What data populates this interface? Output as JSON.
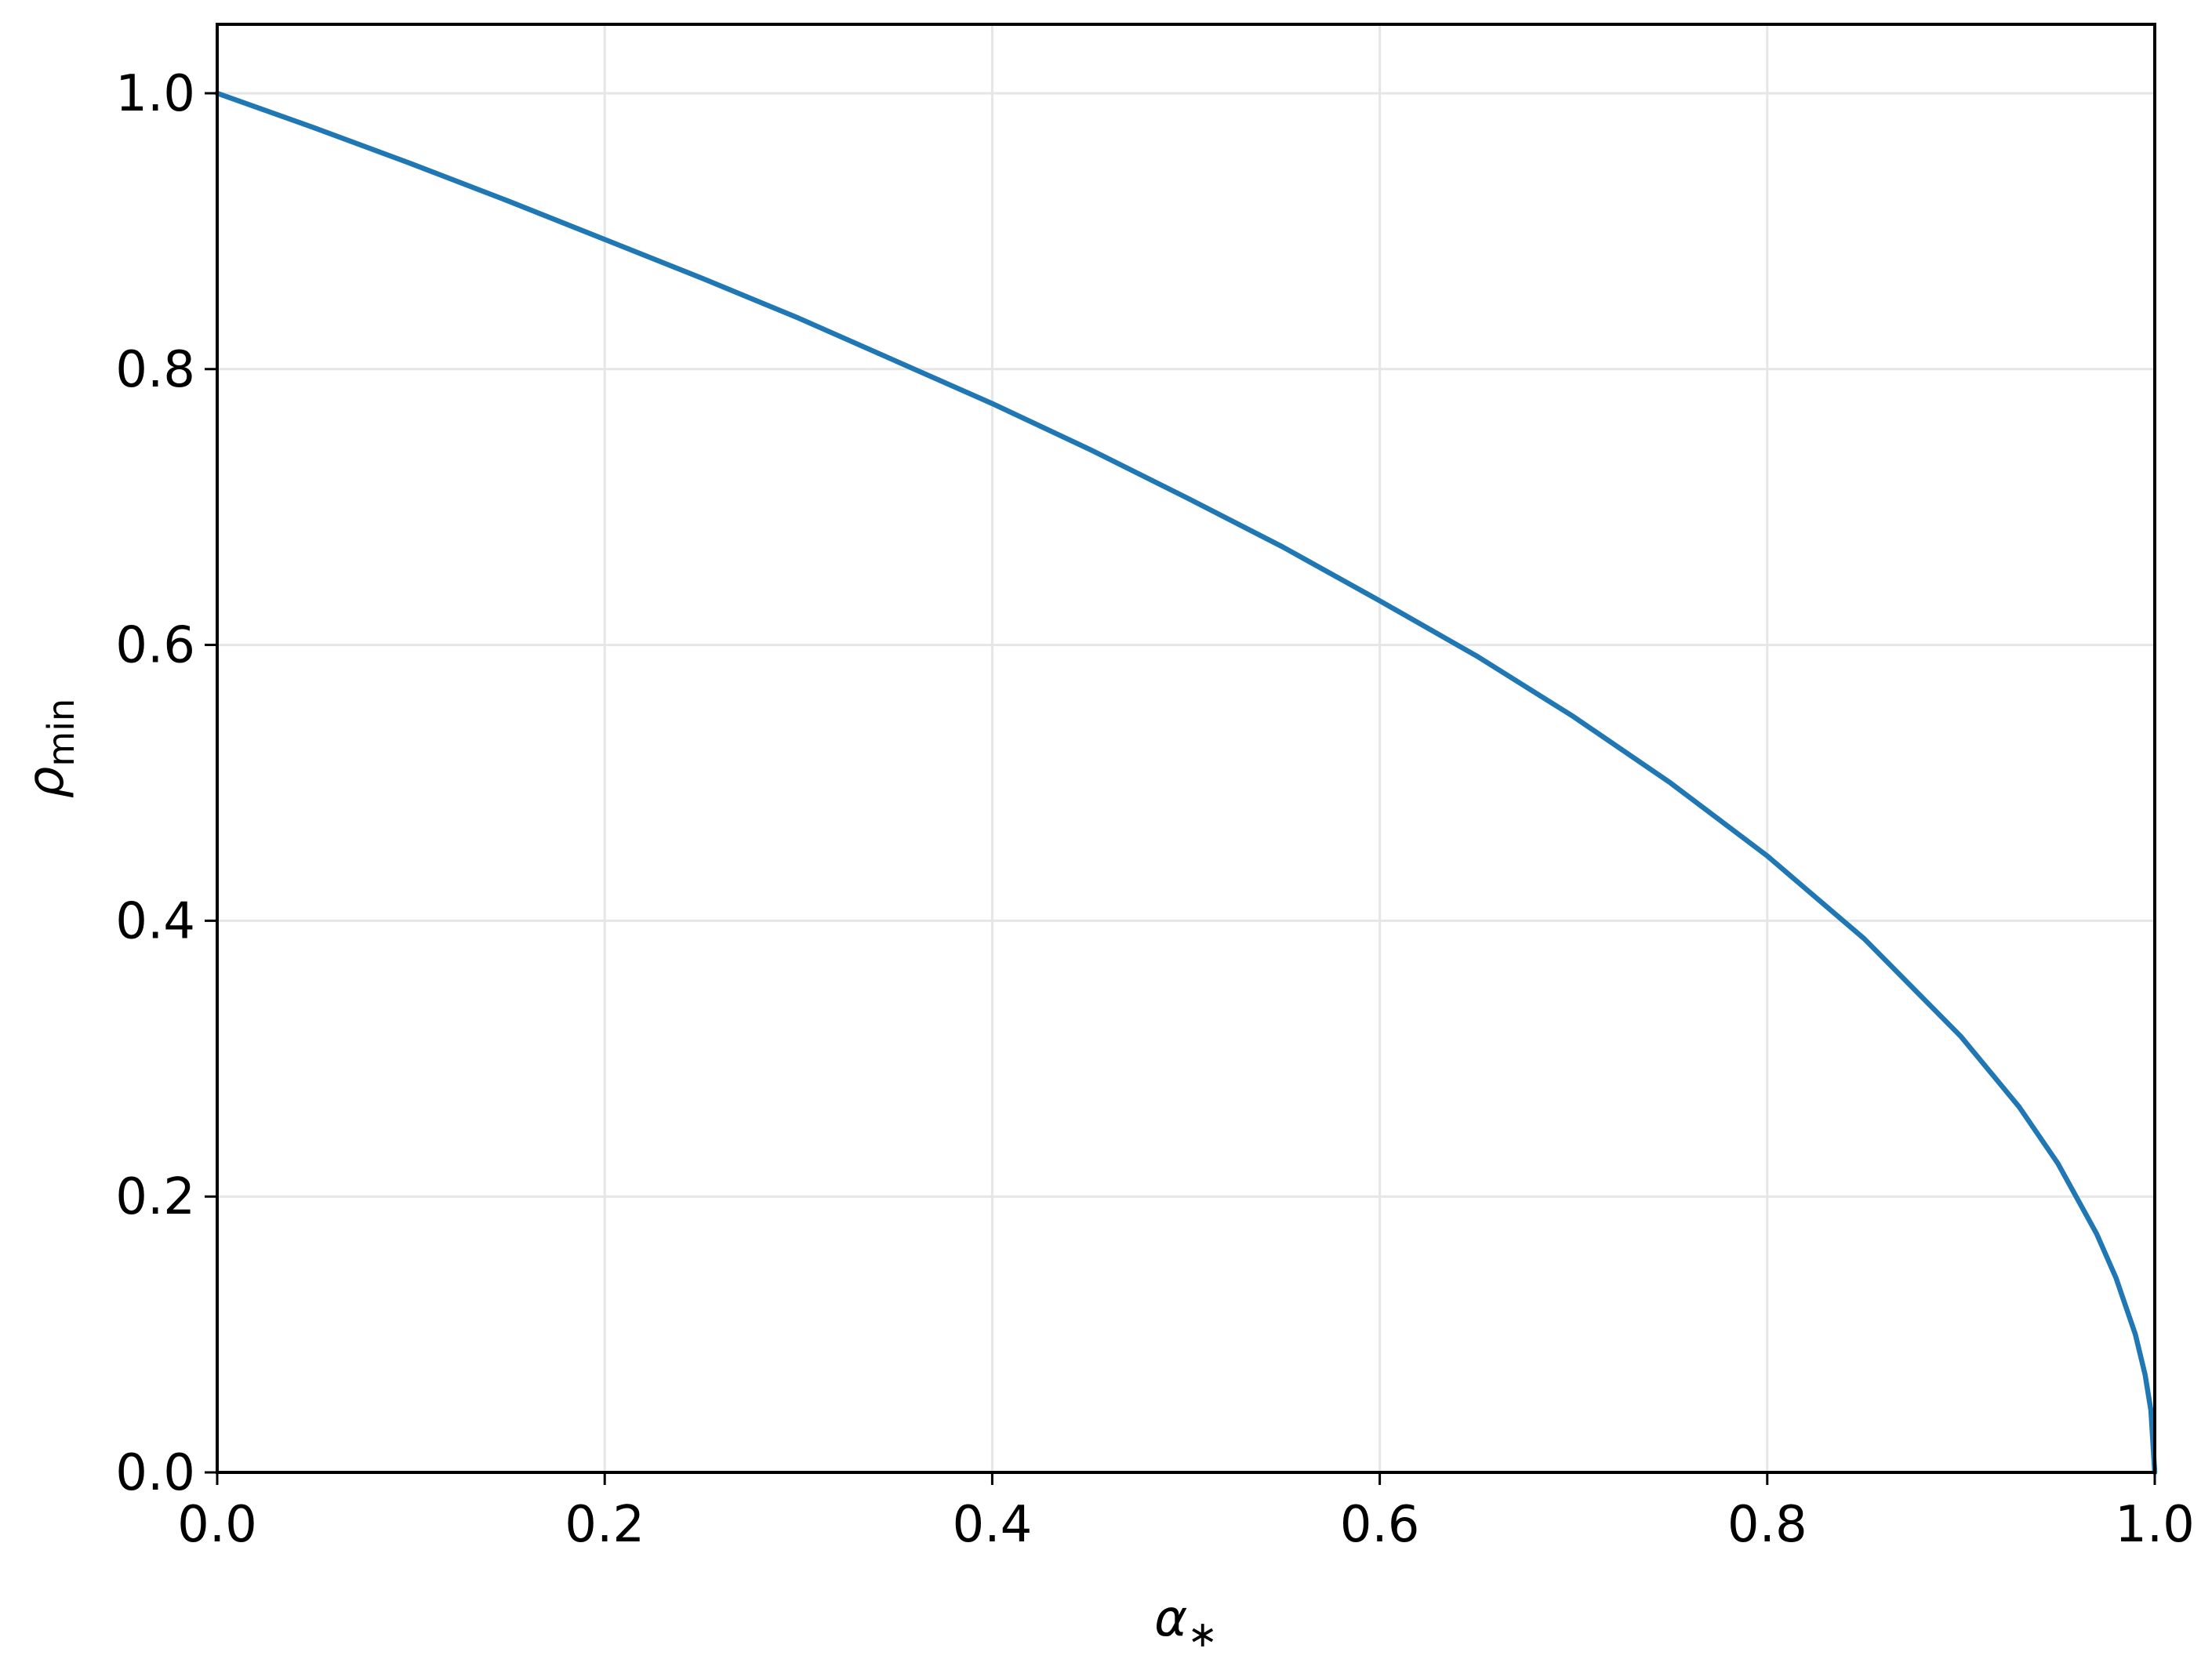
{
  "chart_data": {
    "type": "line",
    "title": "",
    "xlabel": {
      "base": "α",
      "sub": "∗"
    },
    "ylabel": {
      "base": "ρ",
      "sub": "min"
    },
    "xlim": [
      0.0,
      1.0
    ],
    "ylim": [
      0.0,
      1.05
    ],
    "grid": true,
    "x_ticks": [
      "0.0",
      "0.2",
      "0.4",
      "0.6",
      "0.8",
      "1.0"
    ],
    "x_tick_values": [
      0.0,
      0.2,
      0.4,
      0.6,
      0.8,
      1.0
    ],
    "y_ticks": [
      "0.0",
      "0.2",
      "0.4",
      "0.6",
      "0.8",
      "1.0"
    ],
    "y_tick_values": [
      0.0,
      0.2,
      0.4,
      0.6,
      0.8,
      1.0
    ],
    "series": [
      {
        "color": "#1f77b4",
        "x": [
          0.0,
          0.05,
          0.1,
          0.15,
          0.2,
          0.25,
          0.3,
          0.35,
          0.4,
          0.45,
          0.5,
          0.55,
          0.6,
          0.65,
          0.7,
          0.75,
          0.8,
          0.85,
          0.9,
          0.93,
          0.95,
          0.97,
          0.98,
          0.99,
          0.995,
          0.998,
          1.0
        ],
        "y": [
          1.0,
          0.975,
          0.949,
          0.922,
          0.894,
          0.866,
          0.837,
          0.806,
          0.775,
          0.742,
          0.707,
          0.671,
          0.632,
          0.592,
          0.548,
          0.5,
          0.447,
          0.387,
          0.316,
          0.265,
          0.224,
          0.173,
          0.141,
          0.1,
          0.071,
          0.045,
          0.0
        ]
      }
    ]
  }
}
